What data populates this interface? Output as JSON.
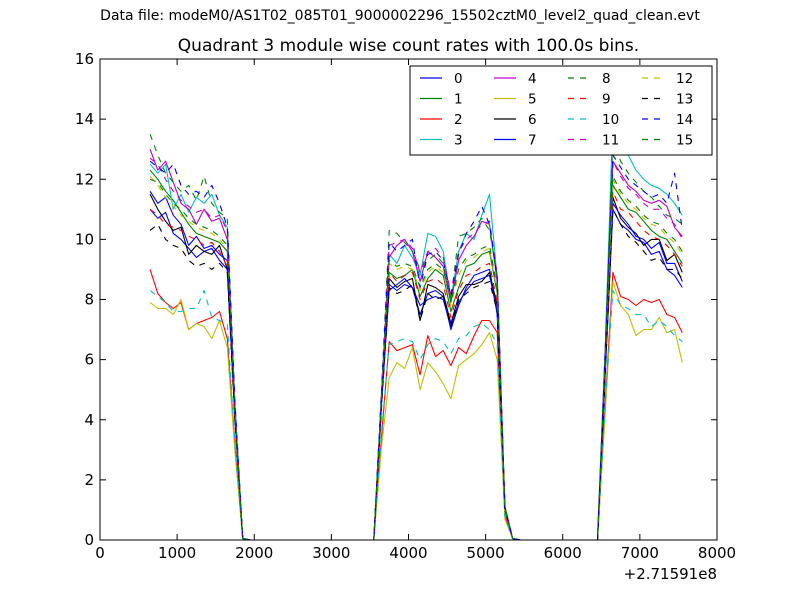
{
  "figure": {
    "suptitle": "Data file: modeM0/AS1T02_085T01_9000002296_15502cztM0_level2_quad_clean.evt"
  },
  "chart_data": {
    "type": "line",
    "title": "Quadrant 3 module wise count rates with 100.0s bins.",
    "xlabel": "",
    "ylabel": "",
    "x_offset_label": "+2.71591e8",
    "xlim": [
      0,
      8000
    ],
    "ylim": [
      0,
      16
    ],
    "xticks": [
      0,
      1000,
      2000,
      3000,
      4000,
      5000,
      6000,
      7000,
      8000
    ],
    "yticks": [
      0,
      2,
      4,
      6,
      8,
      10,
      12,
      14,
      16
    ],
    "legend_position": "top-right",
    "legend_columns": 4,
    "x": [
      650,
      750,
      850,
      950,
      1050,
      1150,
      1250,
      1350,
      1450,
      1550,
      1650,
      1750,
      1850,
      1950,
      3550,
      3650,
      3750,
      3850,
      3950,
      4050,
      4150,
      4250,
      4350,
      4450,
      4550,
      4650,
      4750,
      4850,
      4950,
      5050,
      5150,
      5250,
      5350,
      5450,
      6450,
      6550,
      6650,
      6750,
      6850,
      6950,
      7050,
      7150,
      7250,
      7350,
      7450,
      7550
    ],
    "series": [
      {
        "name": "0",
        "color": "#0000ff",
        "dash": "solid",
        "values": [
          11.0,
          10.7,
          10.9,
          10.2,
          10.0,
          9.7,
          9.4,
          9.6,
          9.7,
          9.3,
          9.0,
          4.0,
          0.05,
          0,
          0,
          4.5,
          8.5,
          8.3,
          8.5,
          8.4,
          7.5,
          8.2,
          8.3,
          8.1,
          7.0,
          7.8,
          8.4,
          8.8,
          8.9,
          9.0,
          7.5,
          1.0,
          0.05,
          0,
          0,
          5.5,
          11.0,
          10.5,
          10.3,
          10.0,
          9.9,
          9.5,
          9.6,
          9.0,
          8.8,
          8.4
        ]
      },
      {
        "name": "1",
        "color": "#008000",
        "dash": "solid",
        "values": [
          12.3,
          12.0,
          11.6,
          11.3,
          10.9,
          10.5,
          10.2,
          10.1,
          10.0,
          9.9,
          9.6,
          4.2,
          0.05,
          0,
          0,
          4.7,
          8.9,
          8.7,
          8.8,
          9.0,
          8.1,
          8.7,
          9.0,
          8.8,
          7.6,
          8.4,
          9.1,
          9.2,
          9.5,
          9.6,
          8.2,
          1.1,
          0.05,
          0,
          0,
          5.9,
          11.8,
          11.4,
          11.0,
          10.9,
          10.6,
          10.3,
          10.1,
          10.0,
          9.6,
          9.2
        ]
      },
      {
        "name": "2",
        "color": "#ff0000",
        "dash": "solid",
        "values": [
          9.0,
          8.2,
          7.9,
          7.7,
          7.9,
          7.0,
          7.2,
          7.3,
          7.4,
          7.6,
          6.7,
          3.1,
          0.05,
          0,
          0,
          3.4,
          6.6,
          6.3,
          6.4,
          6.5,
          5.5,
          6.8,
          6.1,
          6.3,
          5.8,
          6.4,
          6.2,
          6.8,
          7.3,
          7.3,
          6.9,
          0.8,
          0.05,
          0,
          0,
          4.5,
          8.9,
          8.1,
          8.0,
          7.8,
          8.0,
          7.9,
          8.0,
          7.5,
          7.4,
          6.9
        ]
      },
      {
        "name": "3",
        "color": "#00bfbf",
        "dash": "solid",
        "values": [
          12.5,
          12.2,
          12.5,
          11.0,
          11.5,
          10.9,
          11.4,
          11.2,
          11.5,
          10.8,
          10.4,
          4.5,
          0.05,
          0,
          0,
          4.9,
          9.5,
          9.2,
          9.8,
          9.4,
          8.8,
          10.2,
          10.1,
          9.6,
          8.0,
          9.6,
          10.2,
          10.0,
          10.8,
          11.5,
          8.7,
          1.1,
          0.05,
          0,
          0,
          6.4,
          14.1,
          13.5,
          12.8,
          12.3,
          12.0,
          11.8,
          11.7,
          11.5,
          11.2,
          10.8
        ]
      },
      {
        "name": "4",
        "color": "#bf00bf",
        "dash": "solid",
        "values": [
          13.0,
          12.3,
          12.6,
          11.9,
          11.2,
          11.0,
          10.5,
          11.0,
          10.6,
          10.7,
          10.0,
          4.3,
          0.05,
          0,
          0,
          4.8,
          9.4,
          9.8,
          10.0,
          9.6,
          8.6,
          9.6,
          9.4,
          9.1,
          7.9,
          9.3,
          9.8,
          10.1,
          10.6,
          10.5,
          8.6,
          1.1,
          0.05,
          0,
          0,
          6.2,
          12.6,
          12.2,
          11.8,
          11.6,
          11.3,
          11.2,
          11.3,
          11.1,
          10.4,
          10.1
        ]
      },
      {
        "name": "5",
        "color": "#bfbf00",
        "dash": "solid",
        "values": [
          7.9,
          7.7,
          7.7,
          7.5,
          8.0,
          7.0,
          7.2,
          7.1,
          6.7,
          7.3,
          6.4,
          2.9,
          0.05,
          0,
          0,
          3.1,
          5.4,
          5.9,
          5.7,
          6.4,
          5.0,
          5.9,
          5.6,
          5.2,
          4.7,
          5.8,
          6.0,
          6.2,
          6.5,
          6.9,
          6.0,
          0.7,
          0.05,
          0,
          0,
          4.2,
          8.6,
          7.8,
          7.5,
          6.8,
          7.0,
          7.0,
          7.4,
          6.9,
          7.0,
          5.9
        ]
      },
      {
        "name": "6",
        "color": "#000000",
        "dash": "solid",
        "values": [
          11.5,
          11.0,
          10.6,
          10.3,
          10.4,
          9.5,
          9.8,
          9.6,
          9.5,
          9.8,
          9.0,
          4.1,
          0.05,
          0,
          0,
          4.6,
          8.7,
          8.4,
          8.6,
          8.7,
          7.3,
          8.5,
          8.4,
          8.2,
          7.2,
          8.1,
          8.5,
          8.5,
          8.6,
          8.9,
          7.8,
          1.0,
          0.05,
          0,
          0,
          5.7,
          11.4,
          10.7,
          10.4,
          10.2,
          9.8,
          10.0,
          10.0,
          9.3,
          9.5,
          8.9
        ]
      },
      {
        "name": "7",
        "color": "#0000ff",
        "dash": "solid",
        "values": [
          11.6,
          11.2,
          11.4,
          10.8,
          10.5,
          9.8,
          10.1,
          9.7,
          9.8,
          9.5,
          9.3,
          4.1,
          0.05,
          0,
          0,
          4.6,
          8.3,
          8.5,
          8.7,
          8.4,
          7.8,
          8.0,
          8.1,
          8.0,
          7.1,
          7.9,
          8.3,
          8.6,
          8.7,
          8.8,
          7.6,
          1.0,
          0.05,
          0,
          0,
          5.6,
          11.2,
          10.8,
          10.5,
          10.1,
          10.0,
          9.7,
          9.9,
          9.2,
          9.2,
          8.6
        ]
      },
      {
        "name": "8",
        "color": "#008000",
        "dash": "dashed",
        "values": [
          13.5,
          12.8,
          12.2,
          11.9,
          11.6,
          11.8,
          11.3,
          12.1,
          11.2,
          10.9,
          10.7,
          4.6,
          0.05,
          0,
          0,
          5.0,
          10.3,
          10.2,
          9.9,
          9.6,
          9.0,
          9.3,
          9.5,
          9.2,
          8.0,
          10.1,
          10.2,
          10.4,
          10.7,
          10.3,
          8.8,
          1.1,
          0.05,
          0,
          0,
          6.3,
          13.4,
          12.6,
          12.2,
          11.9,
          11.6,
          11.4,
          11.1,
          10.8,
          10.7,
          10.5
        ]
      },
      {
        "name": "9",
        "color": "#ff0000",
        "dash": "dashed",
        "values": [
          11.0,
          10.8,
          10.5,
          10.4,
          10.3,
          10.1,
          10.0,
          9.8,
          9.9,
          9.6,
          9.1,
          4.0,
          0.05,
          0,
          0,
          4.5,
          8.9,
          8.6,
          8.8,
          8.9,
          8.0,
          8.6,
          8.7,
          8.5,
          7.4,
          8.3,
          8.8,
          8.9,
          9.1,
          9.2,
          7.9,
          1.0,
          0.05,
          0,
          0,
          5.8,
          11.6,
          11.0,
          10.9,
          10.6,
          10.3,
          10.1,
          10.0,
          9.8,
          9.5,
          9.1
        ]
      },
      {
        "name": "10",
        "color": "#00bfbf",
        "dash": "dashed",
        "values": [
          8.3,
          8.1,
          7.9,
          7.6,
          7.6,
          7.7,
          7.7,
          8.3,
          7.4,
          7.3,
          7.2,
          3.2,
          0.05,
          0,
          0,
          3.6,
          6.5,
          6.6,
          6.7,
          6.6,
          6.0,
          6.5,
          6.7,
          6.6,
          6.2,
          6.7,
          6.8,
          7.1,
          7.2,
          7.0,
          6.5,
          0.8,
          0.05,
          0,
          0,
          4.5,
          8.3,
          7.8,
          7.7,
          7.5,
          7.5,
          7.1,
          7.3,
          7.1,
          6.8,
          6.6
        ]
      },
      {
        "name": "11",
        "color": "#bf00bf",
        "dash": "dashed",
        "values": [
          12.7,
          12.5,
          12.0,
          11.6,
          11.3,
          11.1,
          10.9,
          11.0,
          10.7,
          10.8,
          10.3,
          4.4,
          0.05,
          0,
          0,
          4.8,
          9.8,
          9.9,
          10.0,
          9.7,
          8.9,
          9.6,
          9.7,
          9.4,
          8.2,
          9.6,
          10.0,
          10.2,
          10.5,
          10.6,
          8.8,
          1.1,
          0.05,
          0,
          0,
          6.2,
          12.6,
          12.1,
          11.7,
          11.5,
          11.2,
          11.0,
          11.0,
          10.7,
          10.5,
          10.0
        ]
      },
      {
        "name": "12",
        "color": "#bfbf00",
        "dash": "dashed",
        "values": [
          12.1,
          11.8,
          11.4,
          11.1,
          10.8,
          10.6,
          10.4,
          10.3,
          10.2,
          10.0,
          9.7,
          4.2,
          0.05,
          0,
          0,
          4.7,
          9.2,
          9.0,
          9.1,
          9.0,
          8.3,
          8.9,
          9.1,
          8.9,
          7.8,
          8.8,
          9.3,
          9.4,
          9.6,
          9.7,
          8.3,
          1.0,
          0.05,
          0,
          0,
          6.0,
          12.0,
          11.5,
          11.2,
          11.0,
          10.7,
          10.5,
          10.4,
          10.1,
          9.9,
          9.5
        ]
      },
      {
        "name": "13",
        "color": "#000000",
        "dash": "dashed",
        "values": [
          10.3,
          10.5,
          10.0,
          9.8,
          9.7,
          9.3,
          9.1,
          9.2,
          9.0,
          9.2,
          8.9,
          3.9,
          0.05,
          0,
          0,
          4.4,
          8.4,
          8.2,
          8.3,
          8.5,
          7.3,
          8.2,
          8.0,
          8.1,
          7.1,
          8.0,
          8.2,
          8.4,
          8.5,
          8.6,
          7.6,
          1.0,
          0.05,
          0,
          0,
          5.5,
          11.0,
          10.5,
          10.1,
          9.9,
          9.6,
          9.3,
          9.4,
          9.0,
          9.0,
          8.7
        ]
      },
      {
        "name": "14",
        "color": "#0000ff",
        "dash": "dashed",
        "values": [
          12.6,
          12.4,
          12.2,
          12.5,
          11.8,
          11.5,
          11.6,
          11.4,
          11.8,
          11.2,
          10.4,
          4.5,
          0.05,
          0,
          0,
          4.9,
          9.9,
          9.6,
          9.8,
          10.0,
          8.4,
          9.5,
          9.6,
          9.3,
          8.1,
          9.5,
          10.2,
          10.6,
          11.1,
          10.5,
          8.7,
          1.1,
          0.05,
          0,
          0,
          6.3,
          12.8,
          12.4,
          12.0,
          11.8,
          11.6,
          11.4,
          11.5,
          11.2,
          12.2,
          10.3
        ]
      },
      {
        "name": "15",
        "color": "#008000",
        "dash": "dashed",
        "values": [
          12.0,
          11.9,
          11.5,
          11.2,
          11.0,
          10.7,
          10.5,
          10.4,
          10.3,
          10.1,
          9.8,
          4.2,
          0.05,
          0,
          0,
          4.7,
          9.3,
          9.1,
          9.2,
          9.1,
          8.4,
          9.0,
          9.2,
          9.0,
          7.9,
          9.0,
          9.4,
          9.5,
          9.7,
          9.8,
          8.4,
          1.0,
          0.05,
          0,
          0,
          6.0,
          12.1,
          11.6,
          11.3,
          11.1,
          10.8,
          10.6,
          10.5,
          10.2,
          10.0,
          9.6
        ]
      }
    ]
  }
}
